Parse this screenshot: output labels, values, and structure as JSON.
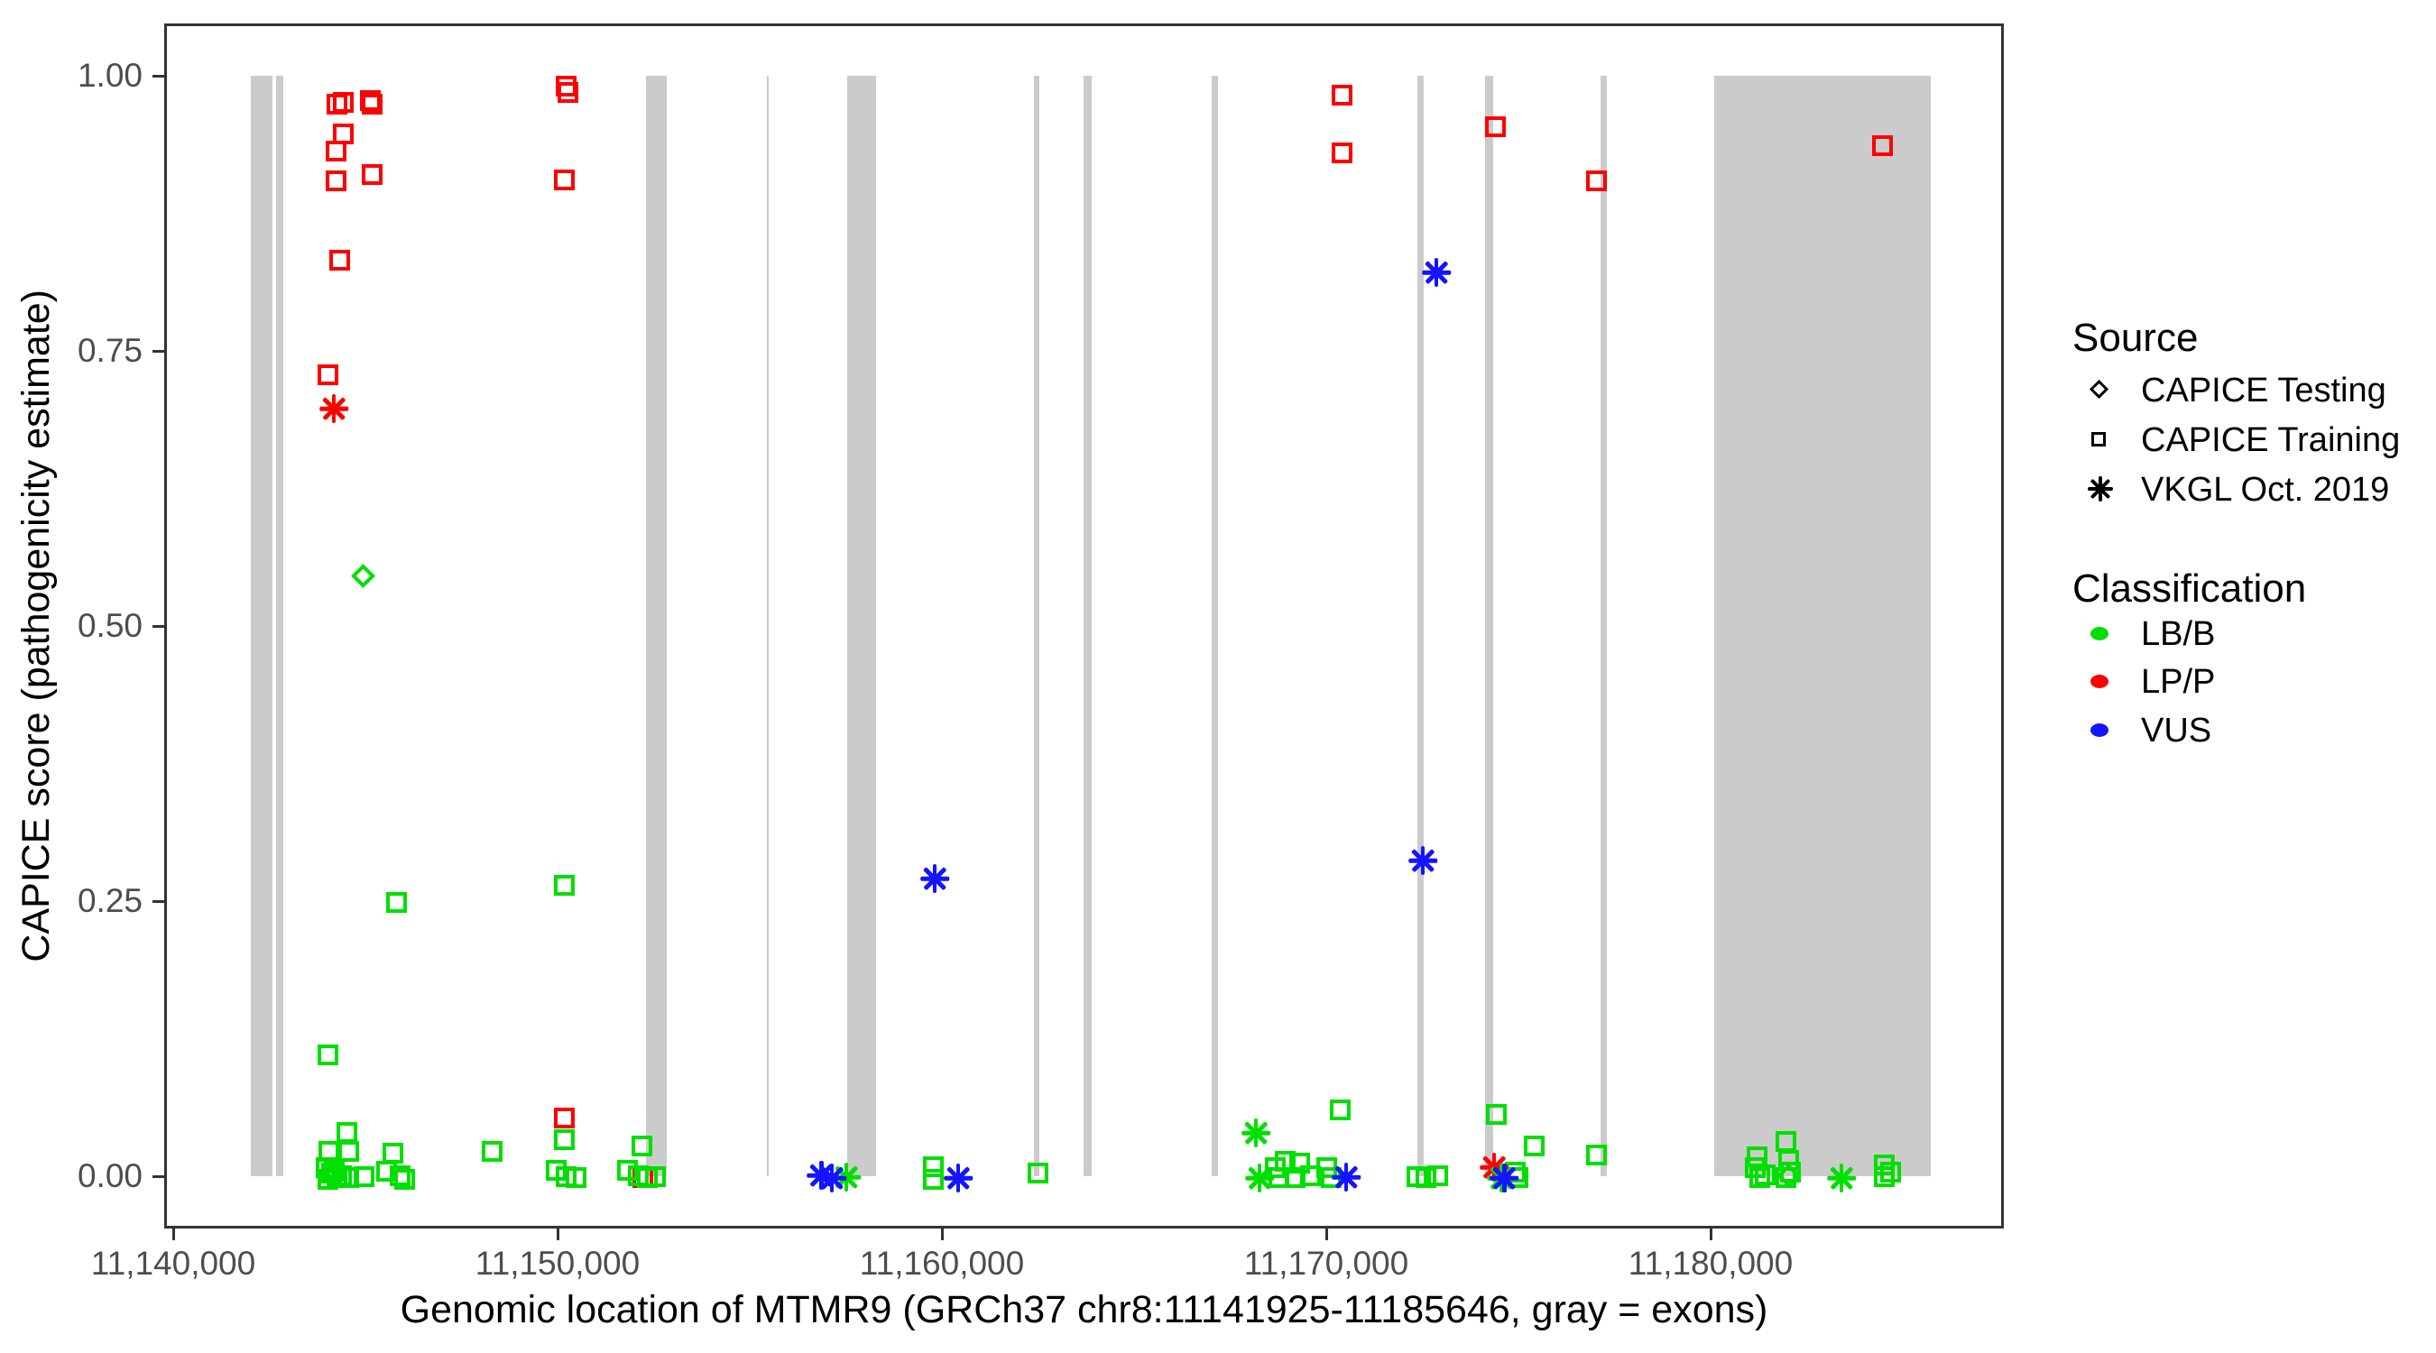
{
  "chart_data": {
    "type": "scatter",
    "title": "",
    "xlabel": "Genomic location of MTMR9 (GRCh37 chr8:11141925-11185646, gray = exons)",
    "ylabel": "CAPICE score (pathogenicity estimate)",
    "xlim": [
      11139750,
      11187850
    ],
    "ylim": [
      0,
      1
    ],
    "grid": false,
    "x_ticks": [
      {
        "pos": 11140000,
        "label": "11,140,000"
      },
      {
        "pos": 11150000,
        "label": "11,150,000"
      },
      {
        "pos": 11160000,
        "label": "11,160,000"
      },
      {
        "pos": 11170000,
        "label": "11,170,000"
      },
      {
        "pos": 11180000,
        "label": "11,180,000"
      }
    ],
    "y_ticks": [
      {
        "value": 0.0,
        "label": "0.00"
      },
      {
        "value": 0.25,
        "label": "0.25"
      },
      {
        "value": 0.5,
        "label": "0.50"
      },
      {
        "value": 0.75,
        "label": "0.75"
      },
      {
        "value": 1.0,
        "label": "1.00"
      }
    ],
    "exon_color": "#cbcbcb",
    "exons": [
      [
        11141950,
        11142510
      ],
      [
        11142610,
        11142790
      ],
      [
        11152240,
        11152770
      ],
      [
        11155370,
        11155430
      ],
      [
        11157470,
        11158220
      ],
      [
        11162320,
        11162460
      ],
      [
        11163620,
        11163830
      ],
      [
        11166950,
        11167110
      ],
      [
        11172300,
        11172460
      ],
      [
        11174060,
        11174270
      ],
      [
        11177070,
        11177230
      ],
      [
        11180020,
        11185646
      ]
    ],
    "series": [
      {
        "name": "CAPICE Training - LP/P",
        "source": "CAPICE Training",
        "classification": "LP/P",
        "marker": "square",
        "color": "#ff0000",
        "points": [
          [
            11144180,
            0.977
          ],
          [
            11144343,
            0.978
          ],
          [
            11145047,
            0.98
          ],
          [
            11145117,
            0.977
          ],
          [
            11144343,
            0.95
          ],
          [
            11144155,
            0.934
          ],
          [
            11144155,
            0.907
          ],
          [
            11145094,
            0.913
          ],
          [
            11144272,
            0.835
          ],
          [
            11143967,
            0.731
          ],
          [
            11150164,
            0.993
          ],
          [
            11150188,
            0.987
          ],
          [
            11150117,
            0.908
          ],
          [
            11150094,
            0.055
          ],
          [
            11170350,
            0.985
          ],
          [
            11170350,
            0.932
          ],
          [
            11174340,
            0.956
          ],
          [
            11176950,
            0.907
          ],
          [
            11184413,
            0.939
          ],
          [
            11152150,
            0.001
          ]
        ]
      },
      {
        "name": "CAPICE Training - LB/B",
        "source": "CAPICE Training",
        "classification": "LB/B",
        "marker": "square",
        "color": "#00e000",
        "points": [
          [
            11143967,
            0.113
          ],
          [
            11145751,
            0.251
          ],
          [
            11150094,
            0.267
          ],
          [
            11144460,
            0.042
          ],
          [
            11144484,
            0.025
          ],
          [
            11143990,
            0.025
          ],
          [
            11143900,
            0.01
          ],
          [
            11144060,
            0.005
          ],
          [
            11144180,
            0.002
          ],
          [
            11143950,
            0.0
          ],
          [
            11144300,
            0.003
          ],
          [
            11144500,
            0.001
          ],
          [
            11144120,
            0.007
          ],
          [
            11144883,
            0.002
          ],
          [
            11145634,
            0.023
          ],
          [
            11145470,
            0.007
          ],
          [
            11145822,
            0.003
          ],
          [
            11145940,
            0.0
          ],
          [
            11148230,
            0.025
          ],
          [
            11150094,
            0.036
          ],
          [
            11149900,
            0.008
          ],
          [
            11150150,
            0.002
          ],
          [
            11150420,
            0.001
          ],
          [
            11152113,
            0.03
          ],
          [
            11151750,
            0.008
          ],
          [
            11152030,
            0.003
          ],
          [
            11152260,
            0.001
          ],
          [
            11152470,
            0.002
          ],
          [
            11159718,
            0.011
          ],
          [
            11159700,
            0.0
          ],
          [
            11162418,
            0.005
          ],
          [
            11168600,
            0.01
          ],
          [
            11168870,
            0.016
          ],
          [
            11169240,
            0.014
          ],
          [
            11169120,
            0.001
          ],
          [
            11168700,
            0.001
          ],
          [
            11169530,
            0.003
          ],
          [
            11169940,
            0.01
          ],
          [
            11170060,
            0.001
          ],
          [
            11170300,
            0.063
          ],
          [
            11172300,
            0.002
          ],
          [
            11172820,
            0.003
          ],
          [
            11172520,
            0.001
          ],
          [
            11174343,
            0.059
          ],
          [
            11174850,
            0.006
          ],
          [
            11174920,
            0.001
          ],
          [
            11175350,
            0.03
          ],
          [
            11176970,
            0.022
          ],
          [
            11181150,
            0.02
          ],
          [
            11181100,
            0.01
          ],
          [
            11181200,
            0.001
          ],
          [
            11181350,
            0.004
          ],
          [
            11181900,
            0.034
          ],
          [
            11181950,
            0.017
          ],
          [
            11182000,
            0.006
          ],
          [
            11181880,
            0.001
          ],
          [
            11184440,
            0.013
          ],
          [
            11184460,
            0.002
          ],
          [
            11184620,
            0.006
          ]
        ]
      },
      {
        "name": "CAPICE Testing - LB/B",
        "source": "CAPICE Testing",
        "classification": "LB/B",
        "marker": "diamond",
        "color": "#00e000",
        "points": [
          [
            11144860,
            0.548
          ],
          [
            11181970,
            0.003
          ]
        ]
      },
      {
        "name": "VKGL Oct. 2019 - LP/P",
        "source": "VKGL Oct. 2019",
        "classification": "LP/P",
        "marker": "asterisk",
        "color": "#ff0000",
        "points": [
          [
            11144108,
            0.7
          ],
          [
            11174300,
            0.011
          ]
        ]
      },
      {
        "name": "VKGL Oct. 2019 - LB/B",
        "source": "VKGL Oct. 2019",
        "classification": "LB/B",
        "marker": "asterisk",
        "color": "#00e000",
        "points": [
          [
            11157440,
            0.002
          ],
          [
            11168100,
            0.042
          ],
          [
            11168190,
            0.001
          ],
          [
            11174500,
            0.001
          ],
          [
            11183330,
            0.001
          ]
        ]
      },
      {
        "name": "VKGL Oct. 2019 - VUS",
        "source": "VKGL Oct. 2019",
        "classification": "VUS",
        "marker": "asterisk",
        "color": "#1414ff",
        "points": [
          [
            11159742,
            0.273
          ],
          [
            11160352,
            0.001
          ],
          [
            11172441,
            0.289
          ],
          [
            11172793,
            0.824
          ],
          [
            11156800,
            0.003
          ],
          [
            11157060,
            0.001
          ],
          [
            11170450,
            0.002
          ],
          [
            11174560,
            0.001
          ]
        ]
      }
    ]
  },
  "legend": {
    "source": {
      "title": "Source",
      "items": [
        {
          "label": "CAPICE Testing",
          "marker": "diamond"
        },
        {
          "label": "CAPICE Training",
          "marker": "square"
        },
        {
          "label": "VKGL Oct. 2019",
          "marker": "asterisk"
        }
      ]
    },
    "classification": {
      "title": "Classification",
      "items": [
        {
          "label": "LB/B",
          "color": "#00e000"
        },
        {
          "label": "LP/P",
          "color": "#ff0000"
        },
        {
          "label": "VUS",
          "color": "#1414ff"
        }
      ]
    }
  },
  "colors": {
    "lbb": "#00e000",
    "lpp": "#ff0000",
    "vus": "#1414ff",
    "exon": "#cbcbcb",
    "tick_label": "#4d4d4d",
    "panel_border": "#333333"
  }
}
